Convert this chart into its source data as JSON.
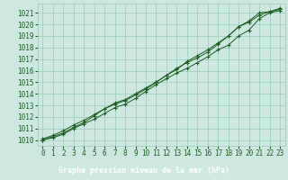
{
  "xlabel": "Graphe pression niveau de la mer (hPa)",
  "xlim": [
    -0.5,
    23.5
  ],
  "ylim": [
    1009.5,
    1021.8
  ],
  "yticks": [
    1010,
    1011,
    1012,
    1013,
    1014,
    1015,
    1016,
    1017,
    1018,
    1019,
    1020,
    1021
  ],
  "xticks": [
    0,
    1,
    2,
    3,
    4,
    5,
    6,
    7,
    8,
    9,
    10,
    11,
    12,
    13,
    14,
    15,
    16,
    17,
    18,
    19,
    20,
    21,
    22,
    23
  ],
  "bg_color": "#cce8e0",
  "grid_color": "#99ccbb",
  "line_color": "#1a5e20",
  "footer_bg": "#2d6e2d",
  "footer_text": "#ffffff",
  "marker": "+",
  "series1": [
    1010.0,
    1010.2,
    1010.5,
    1011.0,
    1011.4,
    1011.8,
    1012.3,
    1012.8,
    1013.1,
    1013.6,
    1014.2,
    1014.8,
    1015.3,
    1015.8,
    1016.2,
    1016.7,
    1017.2,
    1017.8,
    1018.2,
    1019.0,
    1019.5,
    1020.5,
    1021.0,
    1021.2
  ],
  "series2": [
    1010.0,
    1010.3,
    1010.6,
    1011.1,
    1011.5,
    1012.1,
    1012.7,
    1013.2,
    1013.5,
    1014.0,
    1014.5,
    1015.0,
    1015.6,
    1016.1,
    1016.8,
    1017.3,
    1017.8,
    1018.4,
    1019.0,
    1019.8,
    1020.3,
    1021.0,
    1021.1,
    1021.3
  ],
  "series3": [
    1010.1,
    1010.4,
    1010.8,
    1011.3,
    1011.7,
    1012.2,
    1012.7,
    1013.1,
    1013.4,
    1013.9,
    1014.4,
    1015.0,
    1015.6,
    1016.2,
    1016.7,
    1017.1,
    1017.6,
    1018.3,
    1019.0,
    1019.8,
    1020.2,
    1020.8,
    1021.1,
    1021.4
  ],
  "tick_fontsize": 5.5,
  "label_fontsize": 6.0
}
